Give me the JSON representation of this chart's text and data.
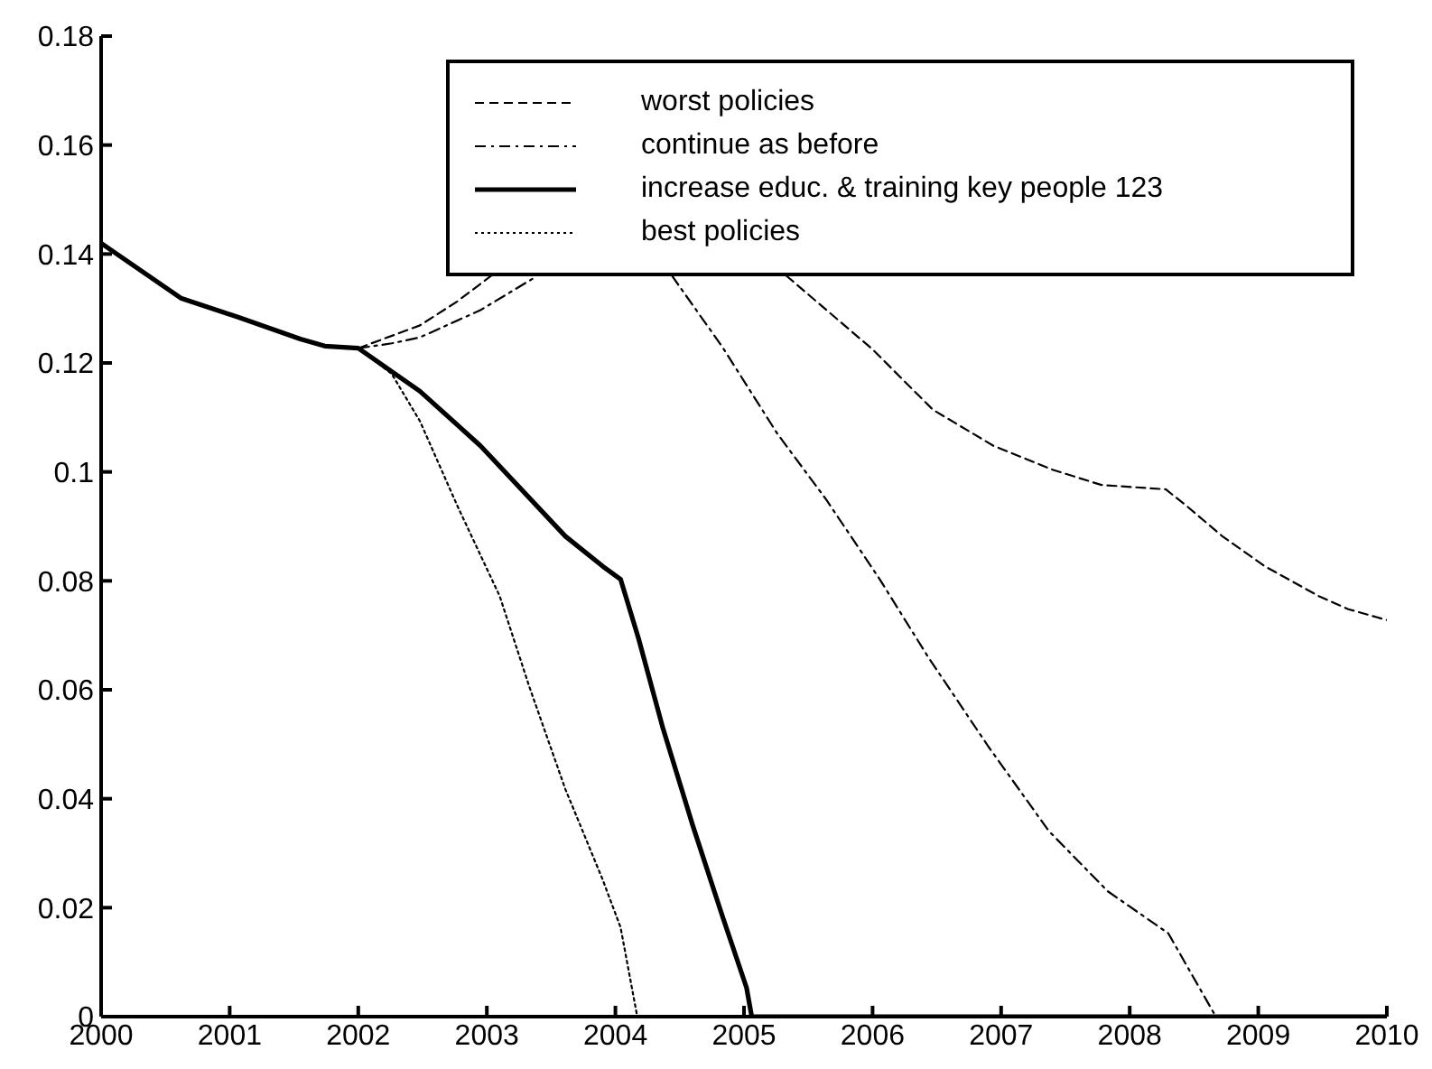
{
  "chart_data": {
    "type": "line",
    "xlim": [
      2000,
      2010
    ],
    "xticks": [
      2000,
      2001,
      2002,
      2003,
      2004,
      2005,
      2006,
      2007,
      2008,
      2009,
      2010
    ],
    "ylim": [
      0,
      0.18
    ],
    "yticks": [
      0,
      0.02,
      0.04,
      0.06,
      0.08,
      0.1,
      0.12,
      0.14,
      0.16,
      0.18
    ],
    "grid": false,
    "legend": "top right",
    "marker": "none",
    "series": [
      {
        "name": "worst policies",
        "color": "#000000",
        "line_style": "dashed",
        "x": [
          2002,
          2002.48,
          2002.77,
          2003.05,
          2004,
          2005.33,
          2006.0,
          2006.47,
          2006.94,
          2007.4,
          2007.78,
          2008.28,
          2008.44,
          2008.72,
          2009.05,
          2009.47,
          2009.7,
          2010
        ],
        "values": [
          0.1227,
          0.1269,
          0.1313,
          0.1363,
          null,
          0.136,
          0.1225,
          0.1114,
          0.1048,
          0.1004,
          0.0976,
          0.0968,
          0.0938,
          0.0882,
          0.0827,
          0.0772,
          0.0748,
          0.0728
        ]
      },
      {
        "name": "continue as before",
        "color": "#000000",
        "line_style": "dashdot",
        "x": [
          2002,
          2002.26,
          2002.48,
          2002.95,
          2003.38,
          2004,
          2004.44,
          2004.83,
          2005.26,
          2005.64,
          2006.05,
          2006.43,
          2006.9,
          2007.37,
          2007.83,
          2008.3,
          2008.67
        ],
        "values": [
          0.1227,
          0.1236,
          0.1247,
          0.1297,
          0.1358,
          null,
          0.136,
          0.123,
          0.107,
          0.0949,
          0.0805,
          0.0661,
          0.0496,
          0.0341,
          0.023,
          0.0153,
          0
        ]
      },
      {
        "name": "increase educ. & training key people 123",
        "color": "#000000",
        "line_style": "solid",
        "x": [
          2000,
          2000.62,
          2001.08,
          2001.55,
          2001.74,
          2002,
          2002.48,
          2002.95,
          2003.61,
          2003.9,
          2004.04,
          2004.18,
          2004.37,
          2004.6,
          2004.83,
          2005.02,
          2005.06,
          2010
        ],
        "values": [
          0.142,
          0.1319,
          0.1283,
          0.1244,
          0.1231,
          0.1227,
          0.1148,
          0.1048,
          0.0882,
          0.0827,
          0.0803,
          0.0694,
          0.0529,
          0.0352,
          0.0186,
          0.0053,
          0,
          0
        ]
      },
      {
        "name": "best policies",
        "color": "#000000",
        "line_style": "dotted",
        "x": [
          2002,
          2002.26,
          2002.48,
          2002.77,
          2003.1,
          2003.33,
          2003.61,
          2003.9,
          2004.04,
          2004.17
        ],
        "values": [
          0.1227,
          0.118,
          0.1093,
          0.0938,
          0.0772,
          0.0606,
          0.0418,
          0.0252,
          0.0164,
          0
        ]
      }
    ]
  }
}
